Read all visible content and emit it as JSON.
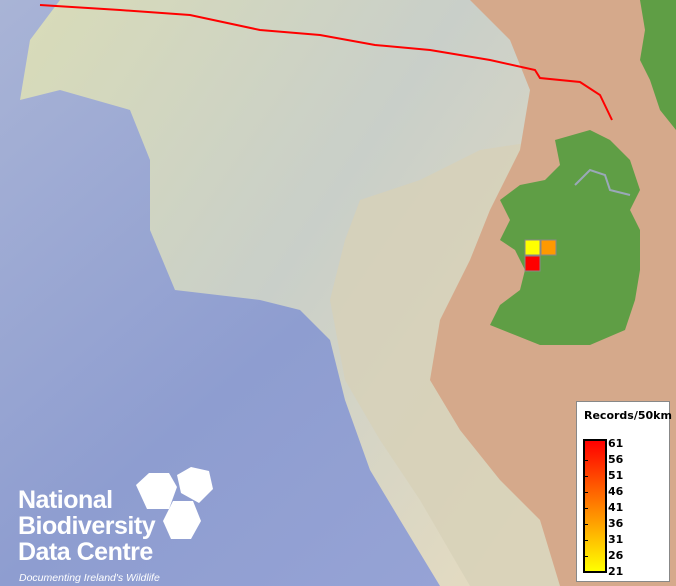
{
  "map": {
    "colors": {
      "deep_sea": "#8f9fd0",
      "shelf": "#e2dcb4",
      "land": "#d4a88a",
      "ireland": "#5f9e45",
      "boundary": "#ff0000"
    },
    "grid_cells": [
      {
        "value": 21,
        "color": "#ffff00"
      },
      {
        "value": 36,
        "color": "#ff9900"
      },
      {
        "value": 61,
        "color": "#ff0000"
      }
    ]
  },
  "legend": {
    "title": "Records/50km",
    "ticks": [
      "61",
      "56",
      "51",
      "46",
      "41",
      "36",
      "31",
      "26",
      "21"
    ],
    "min": 21,
    "max": 61,
    "color_low": "#ffff00",
    "color_high": "#ff0000"
  },
  "logo": {
    "line1": "National",
    "line2": "Biodiversity",
    "line3": "Data Centre",
    "tagline": "Documenting Ireland's Wildlife"
  }
}
